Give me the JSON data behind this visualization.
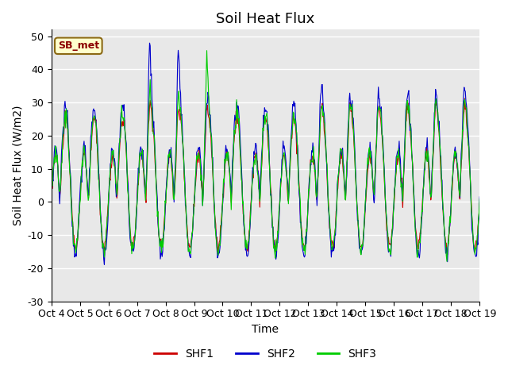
{
  "title": "Soil Heat Flux",
  "ylabel": "Soil Heat Flux (W/m2)",
  "xlabel": "Time",
  "ylim": [
    -30,
    52
  ],
  "yticks": [
    -30,
    -20,
    -10,
    0,
    10,
    20,
    30,
    40,
    50
  ],
  "legend_label": "SB_met",
  "series": [
    "SHF1",
    "SHF2",
    "SHF3"
  ],
  "colors": [
    "#cc0000",
    "#0000cc",
    "#00cc00"
  ],
  "background_color": "#e8e8e8",
  "title_fontsize": 13,
  "axis_fontsize": 10,
  "tick_fontsize": 9,
  "xtick_labels": [
    "Oct 4",
    "Oct 5",
    "Oct 6",
    "Oct 7",
    "Oct 8",
    "Oct 9",
    "Oct 10",
    "Oct 11",
    "Oct 12",
    "Oct 13",
    "Oct 14",
    "Oct 15",
    "Oct 16",
    "Oct 17",
    "Oct 18",
    "Oct 19"
  ],
  "n_days": 15,
  "points_per_day": 48
}
